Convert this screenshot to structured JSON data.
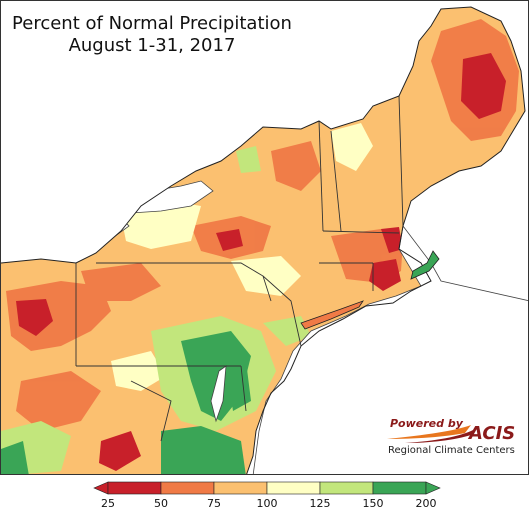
{
  "map": {
    "title_line1": "Percent of Normal Precipitation",
    "title_line2": "August 1-31, 2017"
  },
  "logo": {
    "powered_by": "Powered by",
    "brand": "ACIS",
    "subtitle": "Regional Climate Centers"
  },
  "legend": {
    "ticks": [
      "25",
      "50",
      "75",
      "100",
      "125",
      "150",
      "200"
    ],
    "colors": [
      "#c8202a",
      "#f07a46",
      "#fbc070",
      "#ffffc4",
      "#c2e67c",
      "#3aa556"
    ],
    "arrow_low_color": "#c8202a",
    "arrow_high_color": "#3aa556"
  },
  "colors": {
    "water": "#ffffff",
    "land_base": "#fbc070"
  }
}
